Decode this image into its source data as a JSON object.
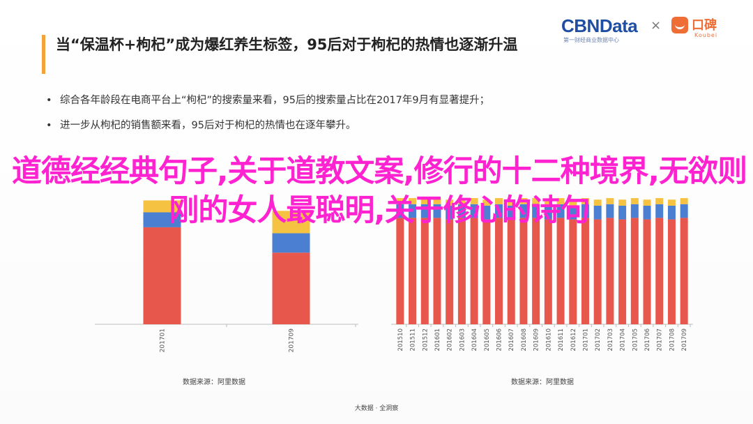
{
  "header": {
    "title": "当“保温杯+枸杞”成为爆红养生标签，95后对于枸杞的热情也逐渐升温",
    "brand_cbn": "CBNData",
    "brand_cbn_sub": "第一财经商业数据中心",
    "times": "×",
    "brand_koubei": "口碑",
    "brand_koubei_sub": "Koubei"
  },
  "bullets": [
    "综合各年龄段在电商平台上“枸杞”的搜索量来看，95后的搜索量占比在2017年9月有显著提升；",
    "进一步从枸杞的销售额来看，95后对于枸杞的热情也在逐年攀升。"
  ],
  "overlay": {
    "text": "道德经经典句子,关于道教文案,修行的十二种境界,无欲则刚的女人最聪明,关于修心的诗句"
  },
  "chart_data": [
    {
      "type": "bar",
      "stacked": true,
      "title": "",
      "categories": [
        "201701",
        "201709"
      ],
      "series": [
        {
          "color": "#e8574c",
          "values": [
            0.65,
            0.48
          ]
        },
        {
          "color": "#4b7fd1",
          "values": [
            0.1,
            0.13
          ]
        },
        {
          "color": "#f5c242",
          "values": [
            0.08,
            0.15
          ]
        }
      ],
      "ylim": [
        0,
        1
      ],
      "source": "数据来源：阿里数据"
    },
    {
      "type": "bar",
      "stacked": true,
      "title": "",
      "categories": [
        "201510",
        "201511",
        "201512",
        "201601",
        "201602",
        "201603",
        "201604",
        "201605",
        "201606",
        "201607",
        "201608",
        "201609",
        "201610",
        "201611",
        "201612",
        "201701",
        "201702",
        "201703",
        "201704",
        "201705",
        "201706",
        "201707",
        "201708",
        "201709"
      ],
      "series": [
        {
          "color": "#e8574c",
          "values": [
            0.7,
            0.7,
            0.7,
            0.7,
            0.69,
            0.7,
            0.7,
            0.69,
            0.7,
            0.69,
            0.7,
            0.7,
            0.69,
            0.7,
            0.69,
            0.7,
            0.69,
            0.7,
            0.69,
            0.7,
            0.69,
            0.7,
            0.69,
            0.7
          ]
        },
        {
          "color": "#4b7fd1",
          "values": [
            0.09,
            0.09,
            0.09,
            0.09,
            0.09,
            0.09,
            0.09,
            0.09,
            0.09,
            0.09,
            0.09,
            0.09,
            0.09,
            0.09,
            0.09,
            0.09,
            0.09,
            0.09,
            0.09,
            0.09,
            0.09,
            0.09,
            0.09,
            0.09
          ]
        },
        {
          "color": "#f5c242",
          "values": [
            0.04,
            0.04,
            0.04,
            0.04,
            0.04,
            0.04,
            0.04,
            0.04,
            0.04,
            0.04,
            0.04,
            0.04,
            0.04,
            0.04,
            0.04,
            0.04,
            0.04,
            0.04,
            0.04,
            0.04,
            0.04,
            0.04,
            0.04,
            0.04
          ]
        }
      ],
      "ylim": [
        0,
        1
      ],
      "source": "数据来源：阿里数据"
    }
  ],
  "footer": "大数据 · 全洞察"
}
